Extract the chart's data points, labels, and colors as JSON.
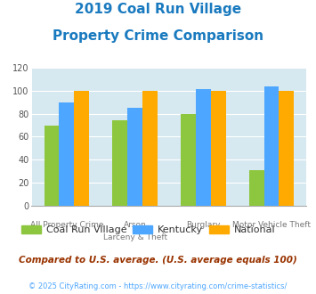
{
  "title_line1": "2019 Coal Run Village",
  "title_line2": "Property Crime Comparison",
  "title_color": "#1a7abf",
  "series": {
    "Coal Run Village": [
      70,
      74,
      80,
      31
    ],
    "Kentucky": [
      90,
      85,
      101,
      104
    ],
    "National": [
      100,
      100,
      100,
      100
    ]
  },
  "bar_colors": {
    "Coal Run Village": "#8dc63f",
    "Kentucky": "#4da6ff",
    "National": "#ffaa00"
  },
  "ylim": [
    0,
    120
  ],
  "yticks": [
    0,
    20,
    40,
    60,
    80,
    100,
    120
  ],
  "grid_color": "#ffffff",
  "plot_bg": "#d6e8f0",
  "top_labels": [
    "",
    "Arson",
    "",
    ""
  ],
  "bot_labels": [
    "All Property Crime",
    "Larceny & Theft",
    "Burglary",
    "Motor Vehicle Theft"
  ],
  "legend_labels": [
    "Coal Run Village",
    "Kentucky",
    "National"
  ],
  "footnote1": "Compared to U.S. average. (U.S. average equals 100)",
  "footnote2": "© 2025 CityRating.com - https://www.cityrating.com/crime-statistics/",
  "footnote1_color": "#993300",
  "footnote2_color": "#4da6ff",
  "footnote2_prefix_color": "#555555"
}
